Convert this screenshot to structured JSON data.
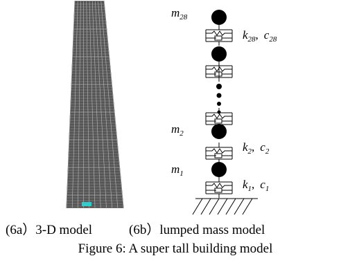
{
  "figure": {
    "model_labels": {
      "masses": [
        {
          "symbol": "m",
          "sub": "28"
        },
        {
          "symbol": "m",
          "sub": "2"
        },
        {
          "symbol": "m",
          "sub": "1"
        }
      ],
      "springs": [
        {
          "k": "k",
          "k_sub": "28",
          "sep": ",",
          "c": "c",
          "c_sub": "28"
        },
        {
          "k": "k",
          "k_sub": "2",
          "sep": ",",
          "c": "c",
          "c_sub": "2"
        },
        {
          "k": "k",
          "k_sub": "1",
          "sep": ",",
          "c": "c",
          "c_sub": "1"
        }
      ]
    },
    "subcaptions": [
      "(6a）3-D model",
      "(6b）lumped mass model"
    ],
    "caption": "Figure 6: A super tall building model"
  }
}
